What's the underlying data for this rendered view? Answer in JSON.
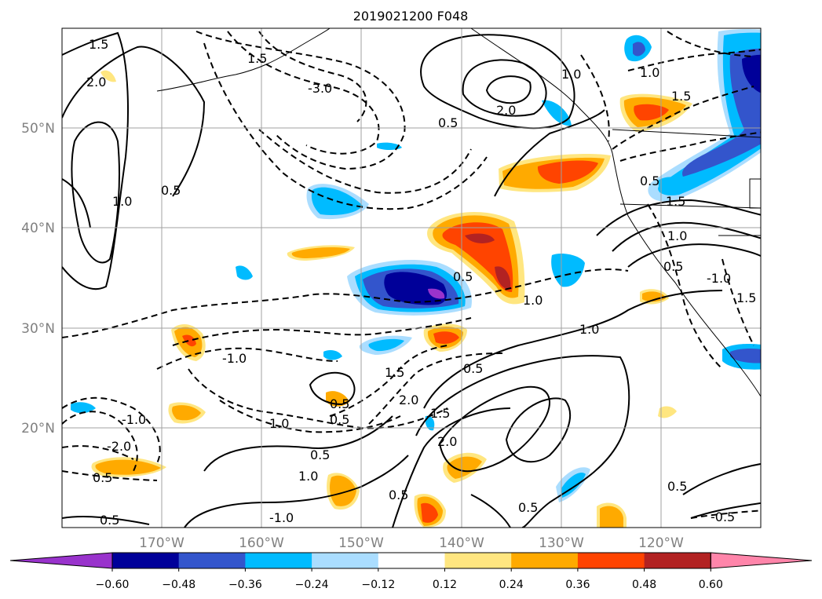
{
  "title": "2019021200 F048",
  "map": {
    "lon_ticks": [
      "170°W",
      "160°W",
      "150°W",
      "140°W",
      "130°W",
      "120°W"
    ],
    "lat_ticks": [
      "50°N",
      "40°N",
      "30°N",
      "20°N"
    ],
    "extent": {
      "lon": [
        -180,
        -110
      ],
      "lat": [
        10,
        60
      ]
    },
    "grid": true,
    "contour_labels": [
      "1.5",
      "2.0",
      "0.5",
      "1.0",
      "1.5",
      "-3.0",
      "1.0",
      "2.0",
      "0.5",
      "1.0",
      "1.5",
      "0.5",
      "1.5",
      "1.0",
      "0.5",
      "-1.0",
      "1.0",
      "1.0",
      "0.5",
      "1.5",
      "0.5",
      "2.0",
      "1.5",
      "2.0",
      "0.5",
      "1.0",
      "0.5",
      "-2.0",
      "0.5",
      "-1.0",
      "0.5",
      "1.0",
      "0.5",
      "0.5",
      "0.5",
      "-0.5",
      "0.5",
      "-1.0",
      "-1.0",
      "1.5"
    ]
  },
  "colorbar": {
    "ticks": [
      "−0.60",
      "−0.48",
      "−0.36",
      "−0.24",
      "−0.12",
      "0.12",
      "0.24",
      "0.36",
      "0.48",
      "0.60"
    ],
    "colors": [
      "#9933cc",
      "#000099",
      "#3355cc",
      "#00bbff",
      "#aaddff",
      "#ffffff",
      "#ffe680",
      "#ffaa00",
      "#ff4400",
      "#b22222",
      "#ff85aa"
    ],
    "extend": "both"
  },
  "chart_data": {
    "type": "heatmap",
    "title": "2019021200 F048",
    "xlabel": "",
    "ylabel": "",
    "xlim": [
      -180,
      -110
    ],
    "ylim": [
      10,
      60
    ],
    "x_ticks": [
      "170°W",
      "160°W",
      "150°W",
      "140°W",
      "130°W",
      "120°W"
    ],
    "y_ticks": [
      "50°N",
      "40°N",
      "30°N",
      "20°N"
    ],
    "levels": [
      -0.6,
      -0.48,
      -0.36,
      -0.24,
      -0.12,
      0.12,
      0.24,
      0.36,
      0.48,
      0.6
    ],
    "grid": true,
    "features": [
      {
        "kind": "positive",
        "lon": -139,
        "lat": 38,
        "peak": 0.55
      },
      {
        "kind": "negative",
        "lon": -147,
        "lat": 33,
        "peak": -0.62
      },
      {
        "kind": "positive",
        "lon": -135,
        "lat": 45,
        "peak": 0.38
      },
      {
        "kind": "negative",
        "lon": -150,
        "lat": 42,
        "peak": -0.3
      },
      {
        "kind": "negative",
        "lon": -112,
        "lat": 47,
        "peak": -0.5
      },
      {
        "kind": "positive",
        "lon": -123,
        "lat": 51,
        "peak": 0.4
      }
    ]
  }
}
